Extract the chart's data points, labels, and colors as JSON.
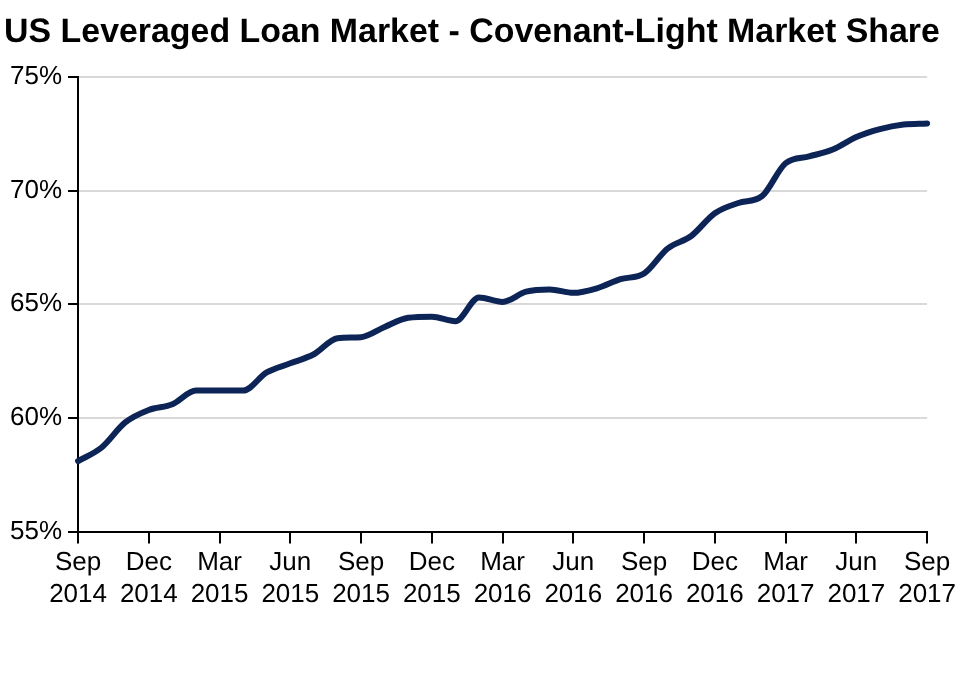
{
  "chart_data": {
    "type": "line",
    "title": "US Leveraged Loan Market - Covenant-Light Market Share",
    "categories": [
      "Sep 2014",
      null,
      null,
      "Dec 2014",
      null,
      null,
      "Mar 2015",
      null,
      null,
      "Jun 2015",
      null,
      null,
      "Sep 2015",
      null,
      null,
      "Dec 2015",
      null,
      null,
      "Mar 2016",
      null,
      null,
      "Jun 2016",
      null,
      null,
      "Sep 2016",
      null,
      null,
      "Dec 2016",
      null,
      null,
      "Mar 2017",
      null,
      null,
      "Jun 2017",
      null,
      null,
      "Sep 2017"
    ],
    "series": [
      {
        "color": "#0d2456",
        "values": [
          58.1,
          58.7,
          59.8,
          60.35,
          60.6,
          61.2,
          61.2,
          61.2,
          62.0,
          62.4,
          62.8,
          63.5,
          63.55,
          64.0,
          64.4,
          64.45,
          64.25,
          65.3,
          65.1,
          65.55,
          65.65,
          65.5,
          65.7,
          66.1,
          66.35,
          67.45,
          68.0,
          69.0,
          69.45,
          69.75,
          71.2,
          71.5,
          71.8,
          72.35,
          72.7,
          72.9,
          72.95
        ]
      }
    ],
    "ylim": [
      55,
      75
    ],
    "yticks": [
      {
        "value": 55,
        "label": "55%"
      },
      {
        "value": 60,
        "label": "60%"
      },
      {
        "value": 65,
        "label": "65%"
      },
      {
        "value": 70,
        "label": "70%"
      },
      {
        "value": 75,
        "label": "75%"
      }
    ],
    "grid": "y",
    "legend": false,
    "marker": "none",
    "line_style": "solid"
  }
}
